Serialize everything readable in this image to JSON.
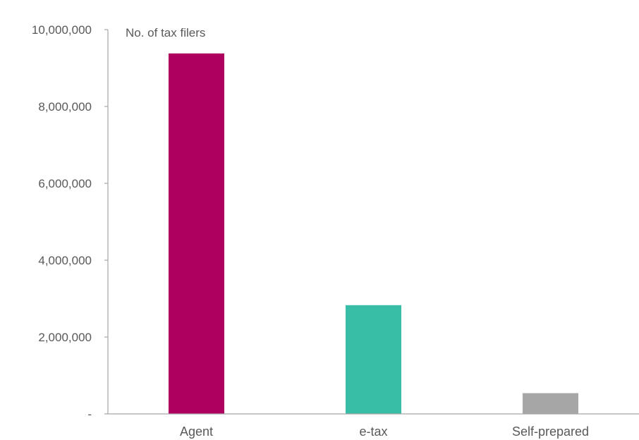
{
  "chart_data": {
    "type": "bar",
    "categories": [
      "Agent",
      "e-tax",
      "Self-prepared"
    ],
    "values": [
      9380000,
      2830000,
      540000
    ],
    "colors": [
      "#ae005e",
      "#38bea6",
      "#a6a6a6"
    ],
    "ylabel": "No. of tax filers",
    "ylim": [
      0,
      10000000
    ],
    "yticks": [
      0,
      2000000,
      4000000,
      6000000,
      8000000,
      10000000
    ],
    "ytick_labels": [
      "-",
      "2,000,000",
      "4,000,000",
      "6,000,000",
      "8,000,000",
      "10,000,000"
    ],
    "grid": false,
    "legend": "none"
  }
}
